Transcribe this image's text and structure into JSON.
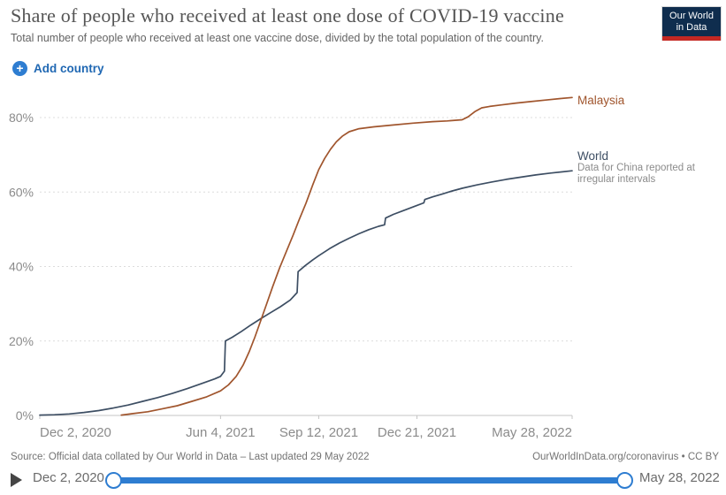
{
  "header": {
    "logo_line1": "Our World",
    "logo_line2": "in Data"
  },
  "controls": {
    "add_country_label": "Add country"
  },
  "chart_data": {
    "type": "line",
    "title": "Share of people who received at least one dose of COVID-19 vaccine",
    "subtitle": "Total number of people who received at least one vaccine dose, divided by the total population of the country.",
    "grid": true,
    "legend_position": "end-of-line labels",
    "ylim": [
      0,
      88
    ],
    "y_tick_values": [
      0,
      20,
      40,
      60,
      80
    ],
    "y_ticks": [
      "0%",
      "20%",
      "40%",
      "60%",
      "80%"
    ],
    "y_grid_values": [
      20,
      40,
      60,
      80
    ],
    "x_range_days": [
      0,
      542
    ],
    "x_tick_days": [
      0,
      184,
      284,
      384,
      542
    ],
    "x_ticks": [
      "Dec 2, 2020",
      "Jun 4, 2021",
      "Sep 12, 2021",
      "Dec 21, 2021",
      "May 28, 2022"
    ],
    "colors": {
      "world": "#3d4e63",
      "malaysia": "#a0552d",
      "accent_blue": "#2e7dd1",
      "gridline": "#dcdcdc",
      "axis": "#c4c4c4",
      "tick_text": "#8b8b8b"
    },
    "series": [
      {
        "name": "World",
        "color": "#3d4e63",
        "annotation": "Data for China reported at irregular intervals",
        "points": [
          [
            0,
            0.1
          ],
          [
            15,
            0.2
          ],
          [
            30,
            0.4
          ],
          [
            45,
            0.8
          ],
          [
            60,
            1.3
          ],
          [
            75,
            2.0
          ],
          [
            90,
            2.8
          ],
          [
            105,
            3.8
          ],
          [
            120,
            4.8
          ],
          [
            135,
            5.9
          ],
          [
            150,
            7.2
          ],
          [
            165,
            8.6
          ],
          [
            178,
            9.8
          ],
          [
            184,
            10.5
          ],
          [
            188,
            11.9
          ],
          [
            189,
            20.0
          ],
          [
            196,
            21.0
          ],
          [
            205,
            22.5
          ],
          [
            215,
            24.3
          ],
          [
            225,
            26.0
          ],
          [
            235,
            27.6
          ],
          [
            245,
            29.2
          ],
          [
            255,
            31.0
          ],
          [
            262,
            33.0
          ],
          [
            263,
            38.6
          ],
          [
            270,
            40.2
          ],
          [
            278,
            41.8
          ],
          [
            284,
            42.9
          ],
          [
            295,
            44.8
          ],
          [
            305,
            46.3
          ],
          [
            315,
            47.6
          ],
          [
            325,
            48.8
          ],
          [
            335,
            49.9
          ],
          [
            345,
            50.8
          ],
          [
            351,
            51.2
          ],
          [
            352,
            53.0
          ],
          [
            360,
            54.0
          ],
          [
            370,
            55.0
          ],
          [
            384,
            56.4
          ],
          [
            391,
            57.1
          ],
          [
            392,
            58.0
          ],
          [
            400,
            58.7
          ],
          [
            410,
            59.5
          ],
          [
            420,
            60.3
          ],
          [
            430,
            61.0
          ],
          [
            445,
            61.9
          ],
          [
            460,
            62.7
          ],
          [
            475,
            63.4
          ],
          [
            490,
            64.0
          ],
          [
            505,
            64.6
          ],
          [
            520,
            65.1
          ],
          [
            542,
            65.7
          ]
        ]
      },
      {
        "name": "Malaysia",
        "color": "#a0552d",
        "annotation": "",
        "points": [
          [
            83,
            0.1
          ],
          [
            95,
            0.5
          ],
          [
            110,
            1.0
          ],
          [
            125,
            1.8
          ],
          [
            140,
            2.6
          ],
          [
            155,
            3.8
          ],
          [
            170,
            5.0
          ],
          [
            184,
            6.6
          ],
          [
            192,
            8.2
          ],
          [
            200,
            10.5
          ],
          [
            207,
            13.5
          ],
          [
            213,
            17.0
          ],
          [
            219,
            21.0
          ],
          [
            225,
            25.5
          ],
          [
            231,
            30.0
          ],
          [
            237,
            34.5
          ],
          [
            244,
            39.5
          ],
          [
            251,
            44.0
          ],
          [
            258,
            48.5
          ],
          [
            264,
            52.5
          ],
          [
            271,
            57.0
          ],
          [
            278,
            62.0
          ],
          [
            284,
            66.0
          ],
          [
            290,
            69.0
          ],
          [
            296,
            71.5
          ],
          [
            302,
            73.5
          ],
          [
            308,
            75.0
          ],
          [
            315,
            76.2
          ],
          [
            325,
            77.0
          ],
          [
            340,
            77.5
          ],
          [
            360,
            78.0
          ],
          [
            380,
            78.5
          ],
          [
            400,
            78.9
          ],
          [
            415,
            79.1
          ],
          [
            430,
            79.4
          ],
          [
            436,
            80.2
          ],
          [
            443,
            81.6
          ],
          [
            450,
            82.6
          ],
          [
            458,
            83.0
          ],
          [
            470,
            83.4
          ],
          [
            485,
            83.9
          ],
          [
            500,
            84.3
          ],
          [
            515,
            84.7
          ],
          [
            530,
            85.1
          ],
          [
            542,
            85.4
          ]
        ]
      }
    ]
  },
  "footer": {
    "source": "Source: Official data collated by Our World in Data – Last updated 29 May 2022",
    "attribution": "OurWorldInData.org/coronavirus • CC BY"
  },
  "timeline": {
    "start_label": "Dec 2, 2020",
    "end_label": "May 28, 2022"
  }
}
